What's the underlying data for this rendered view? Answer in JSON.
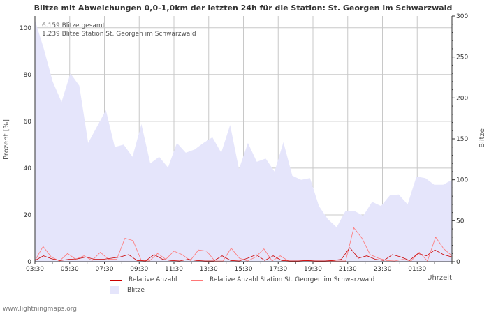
{
  "chart_data": {
    "type": "line",
    "title": "Blitze mit Abweichungen 0,0-1,0km der letzten 24h für die Station: St. Georgen im Schwarzwald",
    "ylabel_left": "Prozent   [%]",
    "ylabel_right": "Blitze",
    "xlabel": "Uhrzeit",
    "annotations": [
      "6.159 Blitze gesamt",
      "1.239 Blitze Station St. Georgen im Schwarzwald"
    ],
    "ylim_left": [
      0,
      105
    ],
    "ylim_right": [
      0,
      300
    ],
    "left_ticks": [
      "0",
      "20",
      "40",
      "60",
      "80",
      "100"
    ],
    "right_ticks": [
      "0",
      "50",
      "100",
      "150",
      "200",
      "250",
      "300"
    ],
    "x_ticks": [
      "03:30",
      "05:30",
      "07:30",
      "09:30",
      "11:30",
      "13:30",
      "15:30",
      "17:30",
      "19:30",
      "21:30",
      "23:30",
      "01:30"
    ],
    "grid": true,
    "series": [
      {
        "name": "Blitze",
        "axis": "right",
        "kind": "area",
        "color": "#e5e5fb",
        "values": [
          295,
          260,
          220,
          195,
          230,
          215,
          145,
          165,
          185,
          140,
          143,
          128,
          168,
          120,
          128,
          115,
          145,
          133,
          137,
          145,
          152,
          133,
          167,
          113,
          145,
          122,
          126,
          110,
          146,
          105,
          100,
          102,
          68,
          52,
          42,
          62,
          62,
          56,
          73,
          68,
          81,
          82,
          70,
          104,
          102,
          94,
          94,
          100
        ]
      },
      {
        "name": "Relative Anzahl",
        "axis": "left",
        "kind": "line",
        "color": "#cc0000",
        "values": [
          0.5,
          2.5,
          1.2,
          0.5,
          1.0,
          1.2,
          2.0,
          1.0,
          1.0,
          1.5,
          2.0,
          3.0,
          0.5,
          0.3,
          3.0,
          1.0,
          0.5,
          0.3,
          1.0,
          0.5,
          0.3,
          0.3,
          2.5,
          0.5,
          0.3,
          1.5,
          3.0,
          0.5,
          2.5,
          0.5,
          0.3,
          0.3,
          0.5,
          0.3,
          0.3,
          0.5,
          1.0,
          6.0,
          1.5,
          2.5,
          1.0,
          0.5,
          3.0,
          2.0,
          0.5,
          3.5,
          2.5,
          5.0,
          3.0,
          2.0
        ]
      },
      {
        "name": "Relative Anzahl Station St. Georgen im Schwarzwald",
        "axis": "left",
        "kind": "line",
        "color": "#ff7777",
        "values": [
          0.5,
          6.5,
          2.0,
          0.3,
          3.5,
          1.0,
          2.5,
          0.5,
          4.0,
          1.0,
          1.0,
          10.0,
          9.0,
          0.5,
          0.3,
          3.5,
          1.0,
          4.5,
          3.0,
          0.5,
          5.0,
          4.5,
          0.3,
          0.3,
          5.8,
          1.5,
          0.3,
          2.0,
          5.5,
          0.3,
          2.5,
          0.3,
          0.3,
          0.5,
          0.3,
          0.3,
          0.3,
          0.3,
          0.3,
          14.5,
          10.0,
          3.0,
          1.5,
          0.5,
          0.3,
          1.0,
          0.3,
          4.0,
          0.3,
          10.5,
          5.5,
          2.5
        ]
      }
    ]
  },
  "legend": {
    "item1": "Relative Anzahl",
    "item2": "Relative Anzahl Station St. Georgen im Schwarzwald",
    "item3": "Blitze"
  },
  "footer": {
    "credit": "www.lightningmaps.org"
  },
  "colors": {
    "grid": "#c8c8c8",
    "axis": "#333333"
  }
}
